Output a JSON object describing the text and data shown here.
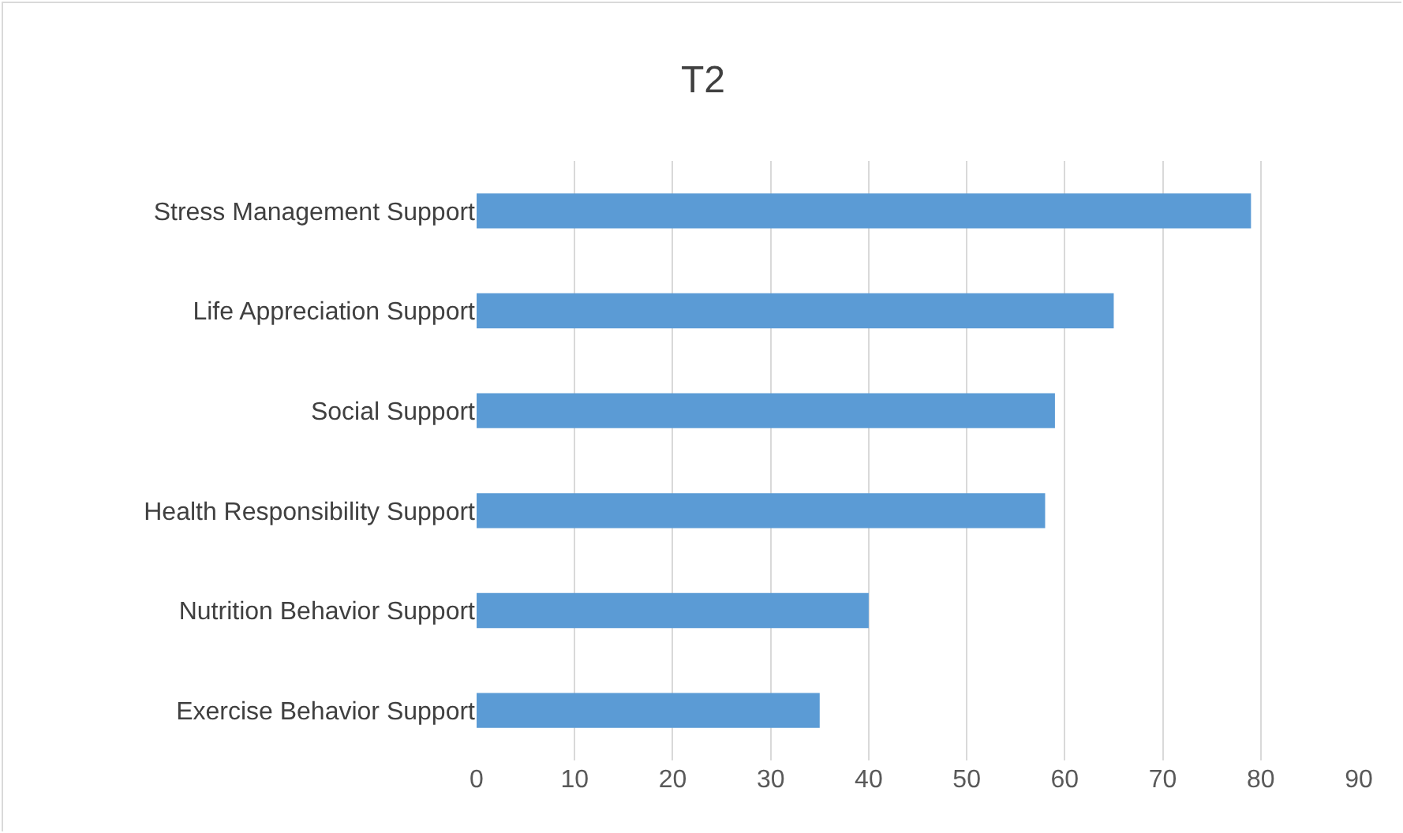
{
  "chart_data": {
    "type": "bar",
    "orientation": "horizontal",
    "title": "T2",
    "categories": [
      "Stress Management Support",
      "Life Appreciation Support",
      "Social Support",
      "Health Responsibility Support",
      "Nutrition Behavior Support",
      "Exercise Behavior Support"
    ],
    "values": [
      79,
      65,
      59,
      58,
      40,
      35
    ],
    "color": "#5b9bd5",
    "xlim": [
      0,
      90
    ],
    "xticks": [
      0,
      10,
      20,
      30,
      40,
      50,
      60,
      70,
      80,
      90
    ],
    "grid": "x"
  }
}
